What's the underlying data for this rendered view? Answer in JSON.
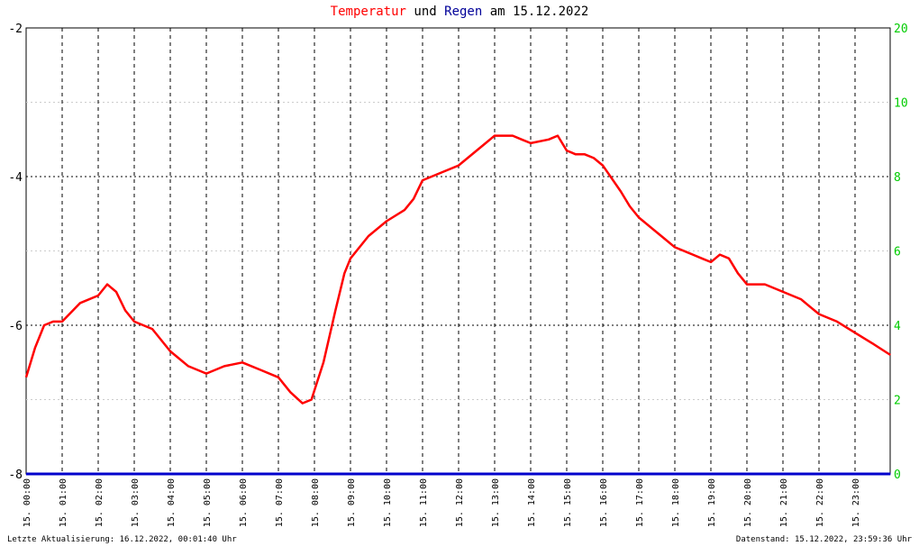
{
  "title": {
    "part1": "Temperatur",
    "part2": "und",
    "part3": "Regen",
    "part4": "am 15.12.2022"
  },
  "colors": {
    "temperature": "#ff0000",
    "rain": "#0000cc",
    "right_axis": "#00cc00",
    "title_blue": "#000099"
  },
  "footer": {
    "left": "Letzte Aktualisierung: 16.12.2022, 00:01:40 Uhr",
    "right": "Datenstand: 15.12.2022, 23:59:36 Uhr"
  },
  "chart_data": {
    "type": "line",
    "title": "Temperatur und Regen am 15.12.2022",
    "grid": true,
    "y_left": {
      "range": [
        -8,
        -2
      ],
      "ticks": [
        "-2",
        "-4",
        "-6",
        "-8"
      ]
    },
    "y_right": {
      "range": [
        0,
        20
      ],
      "ticks": [
        "20",
        "10",
        "8",
        "6",
        "4",
        "2",
        "0"
      ]
    },
    "x_ticks": [
      "15. 00:00",
      "15. 01:00",
      "15. 02:00",
      "15. 03:00",
      "15. 04:00",
      "15. 05:00",
      "15. 06:00",
      "15. 07:00",
      "15. 08:00",
      "15. 09:00",
      "15. 10:00",
      "15. 11:00",
      "15. 12:00",
      "15. 13:00",
      "15. 14:00",
      "15. 15:00",
      "15. 16:00",
      "15. 17:00",
      "15. 18:00",
      "15. 19:00",
      "15. 20:00",
      "15. 21:00",
      "15. 22:00",
      "15. 23:00"
    ],
    "series": [
      {
        "name": "Temperatur",
        "axis": "left",
        "points": [
          [
            "00:00",
            -6.7
          ],
          [
            "00:15",
            -6.3
          ],
          [
            "00:30",
            -6.0
          ],
          [
            "00:45",
            -5.95
          ],
          [
            "01:00",
            -5.95
          ],
          [
            "01:30",
            -5.7
          ],
          [
            "02:00",
            -5.6
          ],
          [
            "02:15",
            -5.45
          ],
          [
            "02:30",
            -5.55
          ],
          [
            "02:45",
            -5.8
          ],
          [
            "03:00",
            -5.95
          ],
          [
            "03:30",
            -6.05
          ],
          [
            "03:45",
            -6.2
          ],
          [
            "04:00",
            -6.35
          ],
          [
            "04:15",
            -6.45
          ],
          [
            "04:30",
            -6.55
          ],
          [
            "05:00",
            -6.65
          ],
          [
            "05:15",
            -6.6
          ],
          [
            "05:30",
            -6.55
          ],
          [
            "06:00",
            -6.5
          ],
          [
            "06:30",
            -6.6
          ],
          [
            "07:00",
            -6.7
          ],
          [
            "07:20",
            -6.9
          ],
          [
            "07:40",
            -7.05
          ],
          [
            "07:55",
            -7.0
          ],
          [
            "08:15",
            -6.5
          ],
          [
            "08:35",
            -5.8
          ],
          [
            "08:50",
            -5.3
          ],
          [
            "09:00",
            -5.1
          ],
          [
            "09:30",
            -4.8
          ],
          [
            "10:00",
            -4.6
          ],
          [
            "10:30",
            -4.45
          ],
          [
            "10:45",
            -4.3
          ],
          [
            "11:00",
            -4.05
          ],
          [
            "11:30",
            -3.95
          ],
          [
            "12:00",
            -3.85
          ],
          [
            "12:30",
            -3.65
          ],
          [
            "12:45",
            -3.55
          ],
          [
            "13:00",
            -3.45
          ],
          [
            "13:30",
            -3.45
          ],
          [
            "13:45",
            -3.5
          ],
          [
            "14:00",
            -3.55
          ],
          [
            "14:30",
            -3.5
          ],
          [
            "14:45",
            -3.45
          ],
          [
            "15:00",
            -3.65
          ],
          [
            "15:15",
            -3.7
          ],
          [
            "15:30",
            -3.7
          ],
          [
            "15:45",
            -3.75
          ],
          [
            "16:00",
            -3.85
          ],
          [
            "16:30",
            -4.2
          ],
          [
            "16:45",
            -4.4
          ],
          [
            "17:00",
            -4.55
          ],
          [
            "17:30",
            -4.75
          ],
          [
            "17:45",
            -4.85
          ],
          [
            "18:00",
            -4.95
          ],
          [
            "18:30",
            -5.05
          ],
          [
            "18:45",
            -5.1
          ],
          [
            "19:00",
            -5.15
          ],
          [
            "19:15",
            -5.05
          ],
          [
            "19:30",
            -5.1
          ],
          [
            "19:45",
            -5.3
          ],
          [
            "20:00",
            -5.45
          ],
          [
            "20:30",
            -5.45
          ],
          [
            "21:00",
            -5.55
          ],
          [
            "21:15",
            -5.6
          ],
          [
            "21:30",
            -5.65
          ],
          [
            "21:45",
            -5.75
          ],
          [
            "22:00",
            -5.85
          ],
          [
            "22:30",
            -5.95
          ],
          [
            "23:00",
            -6.1
          ],
          [
            "23:30",
            -6.25
          ],
          [
            "23:59",
            -6.4
          ]
        ]
      },
      {
        "name": "Regen",
        "axis": "right",
        "points": [
          [
            "00:00",
            0
          ],
          [
            "23:59",
            0
          ]
        ]
      }
    ]
  }
}
